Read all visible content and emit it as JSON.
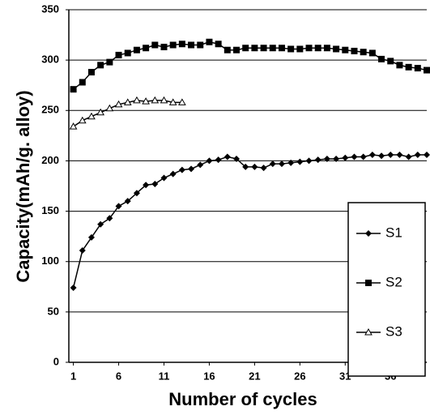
{
  "chart_data": {
    "type": "line",
    "x_label": "Number of cycles",
    "y_label": "Capacity(mAh/g. alloy)",
    "x": [
      1,
      2,
      3,
      4,
      5,
      6,
      7,
      8,
      9,
      10,
      11,
      12,
      13,
      14,
      15,
      16,
      17,
      18,
      19,
      20,
      21,
      22,
      23,
      24,
      25,
      26,
      27,
      28,
      29,
      30,
      31,
      32,
      33,
      34,
      35,
      36,
      37,
      38,
      39,
      40
    ],
    "series": [
      {
        "name": "S1",
        "color": "#000000",
        "marker": "diamond",
        "values": [
          74,
          111,
          124,
          137,
          143,
          155,
          160,
          168,
          176,
          177,
          183,
          187,
          191,
          192,
          196,
          200,
          201,
          204,
          202,
          194,
          194,
          193,
          197,
          197,
          198,
          199,
          200,
          201,
          202,
          202,
          203,
          204,
          204,
          206,
          205,
          206,
          206,
          204,
          206,
          206
        ]
      },
      {
        "name": "S2",
        "color": "#000000",
        "marker": "square",
        "values": [
          271,
          278,
          288,
          295,
          298,
          305,
          307,
          310,
          312,
          315,
          313,
          315,
          316,
          315,
          315,
          318,
          316,
          310,
          310,
          312,
          312,
          312,
          312,
          312,
          311,
          311,
          312,
          312,
          312,
          311,
          310,
          309,
          308,
          307,
          301,
          299,
          295,
          293,
          292,
          290
        ]
      },
      {
        "name": "S3",
        "color": "#000000",
        "marker": "triangle",
        "values": [
          234,
          240,
          244,
          248,
          252,
          256,
          258,
          260,
          259,
          260,
          260,
          258,
          258,
          null,
          null,
          null,
          null,
          null,
          null,
          null,
          null,
          null,
          null,
          null,
          null,
          null,
          null,
          null,
          null,
          null,
          null,
          null,
          null,
          null,
          null,
          null,
          null,
          null,
          null,
          null
        ]
      }
    ],
    "xlim": [
      0.5,
      40
    ],
    "xticks": [
      1,
      6,
      11,
      16,
      21,
      26,
      31,
      36
    ],
    "ylim": [
      0,
      350
    ],
    "yticks": [
      0,
      50,
      100,
      150,
      200,
      250,
      300,
      350
    ],
    "grid": true,
    "legend": "right"
  }
}
